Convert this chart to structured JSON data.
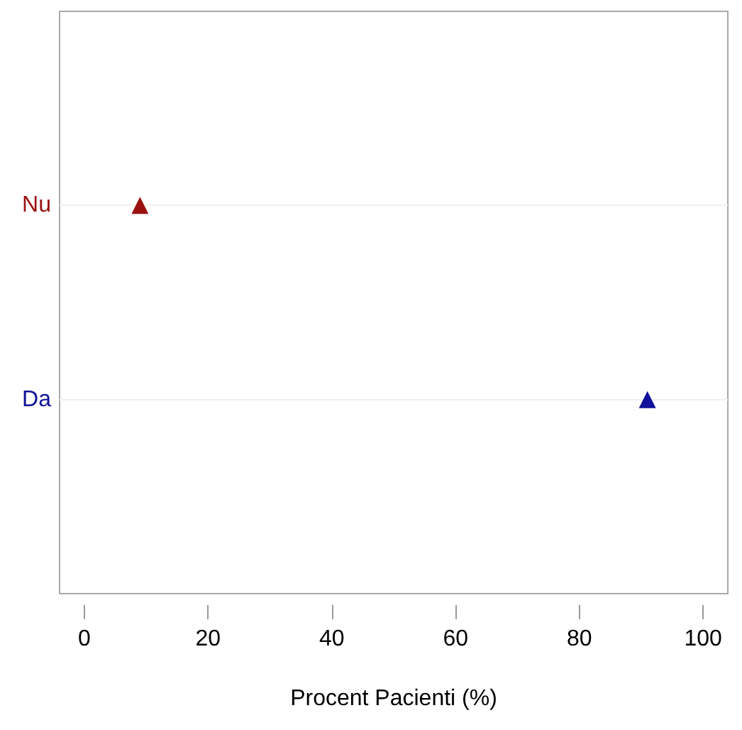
{
  "chart_data": {
    "type": "scatter",
    "orientation": "horizontal",
    "xlabel": "Procent Pacienti (%)",
    "categories": [
      "Nu",
      "Da"
    ],
    "values": [
      9,
      91
    ],
    "colors": [
      "#9b1111",
      "#11119b"
    ],
    "xlim": [
      -4,
      104
    ],
    "xticks": [
      0,
      20,
      40,
      60,
      80,
      100
    ],
    "grid": "y",
    "marker": "triangle"
  }
}
